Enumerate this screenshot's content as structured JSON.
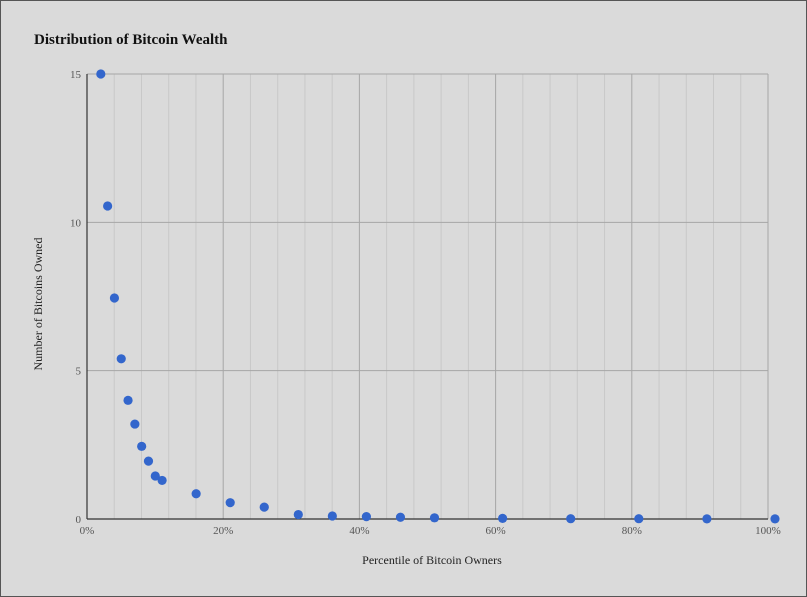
{
  "chart_data": {
    "type": "scatter",
    "title": "Distribution of Bitcoin Wealth",
    "xlabel": "Percentile of Bitcoin Owners",
    "ylabel": "Number of Bitcoins Owned",
    "xlim": [
      0,
      100
    ],
    "ylim": [
      0,
      15
    ],
    "x_ticks": [
      0,
      20,
      40,
      60,
      80,
      100
    ],
    "x_tick_labels": [
      "0%",
      "20%",
      "40%",
      "60%",
      "80%",
      "100%"
    ],
    "y_ticks": [
      0,
      5,
      10,
      15
    ],
    "y_tick_labels": [
      "0",
      "5",
      "10",
      "15"
    ],
    "grid": true,
    "point_color": "#3366cc",
    "series": [
      {
        "x": [
          1,
          2,
          3,
          4,
          5,
          6,
          7,
          8,
          9,
          10,
          15,
          20,
          25,
          30,
          35,
          40,
          45,
          50,
          60,
          70,
          80,
          90,
          100
        ],
        "values": [
          15,
          10.55,
          7.45,
          5.4,
          4.0,
          3.2,
          2.45,
          1.95,
          1.45,
          1.3,
          0.85,
          0.55,
          0.4,
          0.15,
          0.1,
          0.08,
          0.06,
          0.04,
          0.02,
          0.01,
          0.01,
          0.005,
          0.005
        ]
      }
    ]
  }
}
